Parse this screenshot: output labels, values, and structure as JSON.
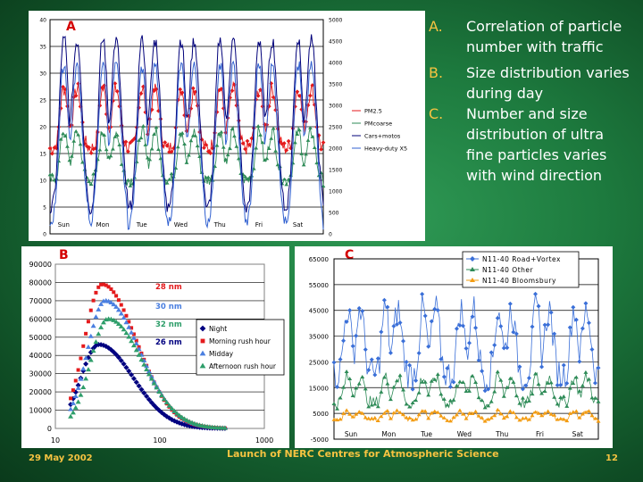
{
  "bullets": [
    {
      "marker": "A.",
      "text": "Correlation of particle number with traffic"
    },
    {
      "marker": "B.",
      "text": "Size distribution varies during day"
    },
    {
      "marker": "C.",
      "text": "Number and size distribution of ultra fine particles varies with wind direction"
    }
  ],
  "footer": {
    "date": "29 May 2002",
    "title": "Launch of NERC Centres for Atmospheric Science",
    "page": "12"
  },
  "chart_data": [
    {
      "panel": "A",
      "type": "line",
      "days": [
        "Sun",
        "Mon",
        "Tue",
        "Wed",
        "Thu",
        "Fri",
        "Sat"
      ],
      "y_left_ticks": [
        "0",
        "5",
        "10",
        "15",
        "20",
        "25",
        "30",
        "35",
        "40"
      ],
      "y_right_ticks": [
        "0",
        "500",
        "1000",
        "1500",
        "2000",
        "2500",
        "3000",
        "3500",
        "4000",
        "4500",
        "5000"
      ],
      "ylim_left": [
        0,
        40
      ],
      "ylim_right": [
        0,
        5000
      ],
      "series": [
        {
          "name": "PM2.5",
          "axis": "left",
          "color": "#e41a1c",
          "daily_low": 16,
          "daily_high": 27
        },
        {
          "name": "PMcoarse",
          "axis": "left",
          "color": "#2e8b57",
          "daily_low": 10,
          "daily_high": 19
        },
        {
          "name": "Cars+motos",
          "axis": "right",
          "color": "#00007a",
          "daily_low": 500,
          "daily_high": 4500
        },
        {
          "name": "Heavy-duty X5",
          "axis": "right",
          "color": "#3060d0",
          "daily_low": 200,
          "daily_high": 3900
        }
      ]
    },
    {
      "panel": "B",
      "type": "scatter",
      "xscale": "log",
      "x_ticks": [
        "10",
        "100",
        "1000"
      ],
      "y_ticks": [
        "0",
        "10000",
        "20000",
        "30000",
        "40000",
        "50000",
        "60000",
        "70000",
        "80000",
        "90000"
      ],
      "ylim": [
        0,
        90000
      ],
      "series": [
        {
          "name": "Night",
          "color": "#000080",
          "marker": "diamond",
          "peak_x": 26,
          "peak_y": 46000
        },
        {
          "name": "Morning rush hour",
          "color": "#e41a1c",
          "marker": "square",
          "peak_x": 28,
          "peak_y": 79000
        },
        {
          "name": "Midday",
          "color": "#4a7fe0",
          "marker": "triangle",
          "peak_x": 30,
          "peak_y": 70000
        },
        {
          "name": "Afternoon rush hour",
          "color": "#2e9e6a",
          "marker": "triangle",
          "peak_x": 32,
          "peak_y": 60000
        }
      ],
      "annotations": [
        {
          "text": "28 nm",
          "color": "#e41a1c"
        },
        {
          "text": "30 nm",
          "color": "#4a7fe0"
        },
        {
          "text": "32 nm",
          "color": "#2e9e6a"
        },
        {
          "text": "26 nm",
          "color": "#000080"
        }
      ]
    },
    {
      "panel": "C",
      "type": "line",
      "days": [
        "Sun",
        "Mon",
        "Tue",
        "Wed",
        "Thu",
        "Fri",
        "Sat"
      ],
      "y_ticks": [
        "-5000",
        "5000",
        "15000",
        "25000",
        "35000",
        "45000",
        "55000",
        "65000"
      ],
      "ylim": [
        -5000,
        65000
      ],
      "series": [
        {
          "name": "N11-40 Road+Vortex",
          "color": "#3a6fd8",
          "daily_low": 20000,
          "daily_high": 48000
        },
        {
          "name": "N11-40 Other",
          "color": "#2e8b57",
          "daily_low": 9000,
          "daily_high": 20000
        },
        {
          "name": "N11-40 Bloomsbury",
          "color": "#f39c12",
          "daily_low": 2500,
          "daily_high": 6000
        }
      ]
    }
  ]
}
